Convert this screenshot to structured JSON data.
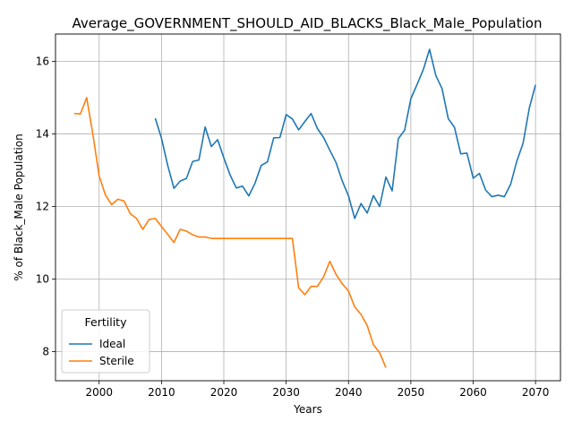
{
  "chart_data": {
    "type": "line",
    "title": "Average_GOVERNMENT_SHOULD_AID_BLACKS_Black_Male_Population",
    "xlabel": "Years",
    "ylabel": "% of Black_Male Population",
    "xlim": [
      1993,
      2074
    ],
    "ylim": [
      7.2,
      16.75
    ],
    "x_ticks": [
      2000,
      2010,
      2020,
      2030,
      2040,
      2050,
      2060,
      2070
    ],
    "y_ticks": [
      8,
      10,
      12,
      14,
      16
    ],
    "grid": true,
    "legend": {
      "title": "Fertility",
      "placement": "lower-left"
    },
    "series": [
      {
        "name": "Ideal",
        "color": "#1f77b4",
        "x": [
          2009,
          2010,
          2011,
          2012,
          2013,
          2014,
          2015,
          2016,
          2017,
          2018,
          2019,
          2020,
          2021,
          2022,
          2023,
          2024,
          2025,
          2026,
          2027,
          2028,
          2029,
          2030,
          2031,
          2032,
          2033,
          2034,
          2035,
          2036,
          2037,
          2038,
          2039,
          2040,
          2041,
          2042,
          2043,
          2044,
          2045,
          2046,
          2047,
          2048,
          2049,
          2050,
          2051,
          2052,
          2053,
          2054,
          2055,
          2056,
          2057,
          2058,
          2059,
          2060,
          2061,
          2062,
          2063,
          2064,
          2065,
          2066,
          2067,
          2068,
          2069,
          2070
        ],
        "y": [
          14.43,
          13.88,
          13.13,
          12.5,
          12.7,
          12.77,
          13.24,
          13.28,
          14.19,
          13.65,
          13.84,
          13.34,
          12.87,
          12.51,
          12.56,
          12.29,
          12.64,
          13.13,
          13.23,
          13.89,
          13.9,
          14.53,
          14.41,
          14.11,
          14.34,
          14.56,
          14.15,
          13.9,
          13.55,
          13.21,
          12.7,
          12.29,
          11.67,
          12.08,
          11.82,
          12.3,
          12.0,
          12.81,
          12.43,
          13.87,
          14.1,
          14.97,
          15.36,
          15.77,
          16.33,
          15.61,
          15.25,
          14.42,
          14.18,
          13.45,
          13.47,
          12.78,
          12.91,
          12.45,
          12.27,
          12.31,
          12.27,
          12.61,
          13.25,
          13.74,
          14.71,
          15.35
        ]
      },
      {
        "name": "Sterile",
        "color": "#ff7f0e",
        "x": [
          1996,
          1997,
          1998,
          1999,
          2000,
          2001,
          2002,
          2003,
          2004,
          2005,
          2006,
          2007,
          2008,
          2009,
          2010,
          2011,
          2012,
          2013,
          2014,
          2015,
          2016,
          2017,
          2018,
          2019,
          2020,
          2021,
          2022,
          2023,
          2024,
          2025,
          2026,
          2027,
          2028,
          2029,
          2030,
          2031,
          2032,
          2033,
          2034,
          2035,
          2036,
          2037,
          2038,
          2039,
          2040,
          2041,
          2042,
          2043,
          2044,
          2045,
          2046
        ],
        "y": [
          14.56,
          14.55,
          15.0,
          13.98,
          12.84,
          12.32,
          12.05,
          12.2,
          12.15,
          11.8,
          11.67,
          11.37,
          11.64,
          11.67,
          11.45,
          11.23,
          11.01,
          11.37,
          11.32,
          11.22,
          11.16,
          11.16,
          11.12,
          11.12,
          11.12,
          11.12,
          11.12,
          11.12,
          11.12,
          11.12,
          11.12,
          11.12,
          11.12,
          11.12,
          11.12,
          11.12,
          9.76,
          9.57,
          9.8,
          9.8,
          10.06,
          10.49,
          10.13,
          9.87,
          9.67,
          9.23,
          9.03,
          8.72,
          8.19,
          7.97,
          7.56
        ]
      }
    ]
  }
}
